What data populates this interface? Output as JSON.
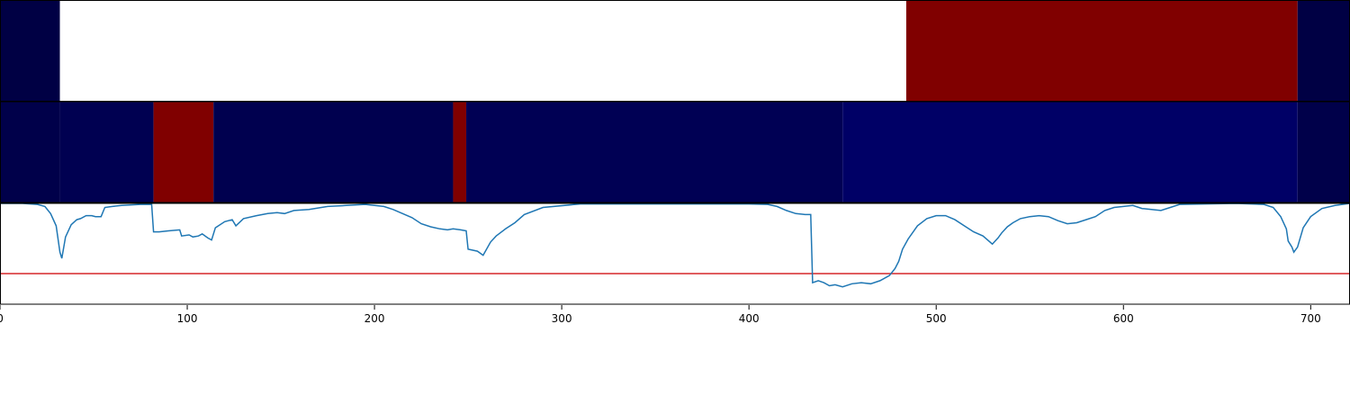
{
  "chart_data": [
    {
      "type": "heatmap",
      "xlim": [
        0,
        721
      ],
      "segments": [
        {
          "start": 0,
          "end": 32,
          "color": "#000044"
        },
        {
          "start": 32,
          "end": 484,
          "color": "#ffffff"
        },
        {
          "start": 484,
          "end": 693,
          "color": "#800000"
        },
        {
          "start": 693,
          "end": 721,
          "color": "#000044"
        }
      ]
    },
    {
      "type": "heatmap",
      "xlim": [
        0,
        721
      ],
      "segments": [
        {
          "start": 0,
          "end": 32,
          "color": "#00004a"
        },
        {
          "start": 32,
          "end": 82,
          "color": "#000051"
        },
        {
          "start": 82,
          "end": 114,
          "color": "#800000"
        },
        {
          "start": 114,
          "end": 242,
          "color": "#00004f"
        },
        {
          "start": 242,
          "end": 249,
          "color": "#800000"
        },
        {
          "start": 249,
          "end": 450,
          "color": "#000054"
        },
        {
          "start": 450,
          "end": 693,
          "color": "#000066"
        },
        {
          "start": 693,
          "end": 721,
          "color": "#00004a"
        }
      ]
    },
    {
      "type": "line",
      "xlim": [
        0,
        721
      ],
      "ylim": [
        0,
        1
      ],
      "x_ticks": [
        0,
        100,
        200,
        300,
        400,
        500,
        600,
        700
      ],
      "threshold": 0.31,
      "threshold_color": "#d62728",
      "series_color": "#1f77b4",
      "points": [
        [
          0,
          1.0
        ],
        [
          12,
          1.0
        ],
        [
          20,
          0.99
        ],
        [
          24,
          0.97
        ],
        [
          27,
          0.9
        ],
        [
          30,
          0.78
        ],
        [
          32,
          0.52
        ],
        [
          33,
          0.46
        ],
        [
          35,
          0.67
        ],
        [
          38,
          0.79
        ],
        [
          41,
          0.84
        ],
        [
          43,
          0.85
        ],
        [
          46,
          0.88
        ],
        [
          49,
          0.88
        ],
        [
          51,
          0.87
        ],
        [
          54,
          0.87
        ],
        [
          56,
          0.96
        ],
        [
          60,
          0.97
        ],
        [
          65,
          0.98
        ],
        [
          75,
          0.99
        ],
        [
          81,
          0.99
        ],
        [
          82,
          0.72
        ],
        [
          85,
          0.72
        ],
        [
          90,
          0.73
        ],
        [
          96,
          0.74
        ],
        [
          97,
          0.68
        ],
        [
          101,
          0.69
        ],
        [
          103,
          0.67
        ],
        [
          106,
          0.68
        ],
        [
          108,
          0.7
        ],
        [
          111,
          0.66
        ],
        [
          113,
          0.64
        ],
        [
          115,
          0.76
        ],
        [
          120,
          0.82
        ],
        [
          124,
          0.84
        ],
        [
          126,
          0.78
        ],
        [
          130,
          0.85
        ],
        [
          137,
          0.88
        ],
        [
          143,
          0.9
        ],
        [
          148,
          0.91
        ],
        [
          152,
          0.9
        ],
        [
          157,
          0.93
        ],
        [
          165,
          0.94
        ],
        [
          175,
          0.97
        ],
        [
          185,
          0.98
        ],
        [
          195,
          0.99
        ],
        [
          205,
          0.97
        ],
        [
          210,
          0.94
        ],
        [
          215,
          0.9
        ],
        [
          220,
          0.86
        ],
        [
          225,
          0.8
        ],
        [
          230,
          0.77
        ],
        [
          235,
          0.75
        ],
        [
          239,
          0.74
        ],
        [
          242,
          0.75
        ],
        [
          246,
          0.74
        ],
        [
          249,
          0.73
        ],
        [
          250,
          0.55
        ],
        [
          255,
          0.53
        ],
        [
          258,
          0.49
        ],
        [
          262,
          0.62
        ],
        [
          265,
          0.68
        ],
        [
          270,
          0.75
        ],
        [
          275,
          0.81
        ],
        [
          280,
          0.89
        ],
        [
          290,
          0.96
        ],
        [
          310,
          0.995
        ],
        [
          400,
          0.995
        ],
        [
          410,
          0.99
        ],
        [
          415,
          0.97
        ],
        [
          420,
          0.93
        ],
        [
          425,
          0.9
        ],
        [
          430,
          0.89
        ],
        [
          433,
          0.89
        ],
        [
          434,
          0.22
        ],
        [
          437,
          0.24
        ],
        [
          440,
          0.22
        ],
        [
          443,
          0.19
        ],
        [
          446,
          0.2
        ],
        [
          450,
          0.18
        ],
        [
          455,
          0.21
        ],
        [
          460,
          0.22
        ],
        [
          465,
          0.21
        ],
        [
          470,
          0.24
        ],
        [
          475,
          0.29
        ],
        [
          478,
          0.36
        ],
        [
          480,
          0.43
        ],
        [
          482,
          0.55
        ],
        [
          485,
          0.65
        ],
        [
          490,
          0.78
        ],
        [
          495,
          0.85
        ],
        [
          500,
          0.88
        ],
        [
          505,
          0.88
        ],
        [
          510,
          0.84
        ],
        [
          515,
          0.78
        ],
        [
          520,
          0.72
        ],
        [
          525,
          0.68
        ],
        [
          530,
          0.6
        ],
        [
          533,
          0.66
        ],
        [
          535,
          0.71
        ],
        [
          538,
          0.77
        ],
        [
          541,
          0.81
        ],
        [
          545,
          0.85
        ],
        [
          550,
          0.87
        ],
        [
          555,
          0.88
        ],
        [
          560,
          0.87
        ],
        [
          565,
          0.83
        ],
        [
          570,
          0.8
        ],
        [
          575,
          0.81
        ],
        [
          580,
          0.84
        ],
        [
          585,
          0.87
        ],
        [
          590,
          0.93
        ],
        [
          595,
          0.96
        ],
        [
          600,
          0.97
        ],
        [
          605,
          0.98
        ],
        [
          610,
          0.95
        ],
        [
          615,
          0.94
        ],
        [
          620,
          0.93
        ],
        [
          625,
          0.96
        ],
        [
          630,
          0.99
        ],
        [
          660,
          1.0
        ],
        [
          675,
          0.99
        ],
        [
          680,
          0.96
        ],
        [
          684,
          0.87
        ],
        [
          687,
          0.75
        ],
        [
          688,
          0.63
        ],
        [
          690,
          0.57
        ],
        [
          691,
          0.52
        ],
        [
          693,
          0.57
        ],
        [
          696,
          0.76
        ],
        [
          700,
          0.87
        ],
        [
          706,
          0.95
        ],
        [
          713,
          0.98
        ],
        [
          721,
          1.0
        ]
      ]
    }
  ]
}
